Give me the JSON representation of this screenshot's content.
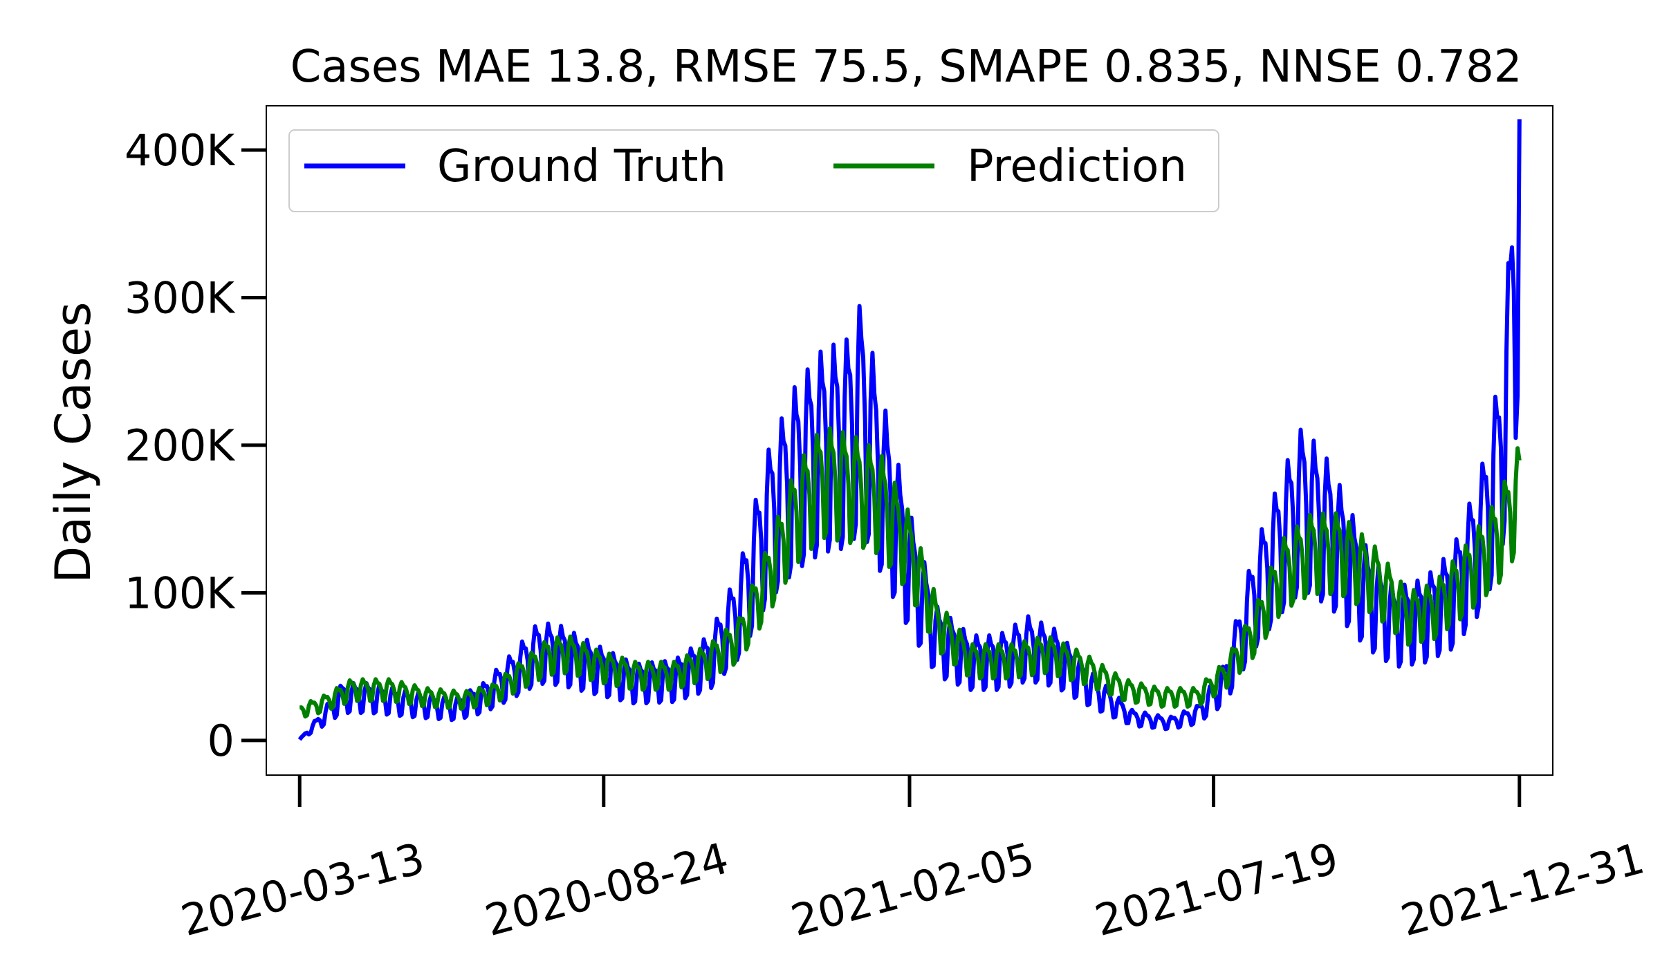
{
  "chart_data": {
    "type": "line",
    "title": "Cases MAE 13.8, RMSE 75.5, SMAPE 0.835, NNSE 0.782",
    "xlabel": "",
    "ylabel": "Daily Cases",
    "xlim": [
      "2020-02-24",
      "2022-01-18"
    ],
    "ylim": [
      0,
      400000
    ],
    "x_ticks": [
      "2020-03-13",
      "2020-08-24",
      "2021-02-05",
      "2021-07-19",
      "2021-12-31"
    ],
    "y_ticks": [
      {
        "value": 0,
        "label": "0"
      },
      {
        "value": 100000,
        "label": "100K"
      },
      {
        "value": 200000,
        "label": "200K"
      },
      {
        "value": 300000,
        "label": "300K"
      },
      {
        "value": 400000,
        "label": "400K"
      }
    ],
    "grid": false,
    "legend_position": "top-left",
    "series": [
      {
        "name": "Ground Truth",
        "color": "#0000ff",
        "trend_points": [
          [
            "2020-03-13",
            500
          ],
          [
            "2020-03-25",
            15000
          ],
          [
            "2020-04-05",
            30000
          ],
          [
            "2020-04-20",
            30000
          ],
          [
            "2020-05-15",
            25000
          ],
          [
            "2020-06-05",
            22000
          ],
          [
            "2020-06-20",
            30000
          ],
          [
            "2020-07-05",
            45000
          ],
          [
            "2020-07-20",
            62000
          ],
          [
            "2020-08-01",
            60000
          ],
          [
            "2020-08-20",
            50000
          ],
          [
            "2020-09-10",
            40000
          ],
          [
            "2020-10-01",
            42000
          ],
          [
            "2020-10-20",
            55000
          ],
          [
            "2020-11-05",
            90000
          ],
          [
            "2020-11-20",
            150000
          ],
          [
            "2020-12-05",
            185000
          ],
          [
            "2020-12-20",
            205000
          ],
          [
            "2021-01-02",
            210000
          ],
          [
            "2021-01-10",
            230000
          ],
          [
            "2021-01-20",
            185000
          ],
          [
            "2021-02-05",
            120000
          ],
          [
            "2021-02-20",
            70000
          ],
          [
            "2021-03-10",
            55000
          ],
          [
            "2021-03-25",
            55000
          ],
          [
            "2021-04-10",
            65000
          ],
          [
            "2021-04-25",
            58000
          ],
          [
            "2021-05-15",
            35000
          ],
          [
            "2021-06-05",
            16000
          ],
          [
            "2021-06-25",
            12000
          ],
          [
            "2021-07-10",
            18000
          ],
          [
            "2021-07-25",
            40000
          ],
          [
            "2021-08-10",
            100000
          ],
          [
            "2021-08-25",
            140000
          ],
          [
            "2021-09-05",
            165000
          ],
          [
            "2021-09-20",
            145000
          ],
          [
            "2021-10-10",
            100000
          ],
          [
            "2021-10-25",
            80000
          ],
          [
            "2021-11-10",
            85000
          ],
          [
            "2021-11-25",
            100000
          ],
          [
            "2021-12-10",
            140000
          ],
          [
            "2021-12-20",
            190000
          ],
          [
            "2021-12-25",
            250000
          ],
          [
            "2021-12-29",
            330000
          ],
          [
            "2021-12-31",
            380000
          ]
        ],
        "weekly_amplitude_fraction": 0.32
      },
      {
        "name": "Prediction",
        "color": "#008000",
        "trend_points": [
          [
            "2020-03-13",
            20000
          ],
          [
            "2020-03-25",
            25000
          ],
          [
            "2020-04-10",
            35000
          ],
          [
            "2020-05-01",
            35000
          ],
          [
            "2020-05-20",
            30000
          ],
          [
            "2020-06-10",
            28000
          ],
          [
            "2020-06-25",
            32000
          ],
          [
            "2020-07-10",
            45000
          ],
          [
            "2020-07-25",
            58000
          ],
          [
            "2020-08-05",
            60000
          ],
          [
            "2020-08-20",
            52000
          ],
          [
            "2020-09-10",
            45000
          ],
          [
            "2020-10-01",
            45000
          ],
          [
            "2020-10-20",
            55000
          ],
          [
            "2020-11-05",
            70000
          ],
          [
            "2020-11-20",
            110000
          ],
          [
            "2020-12-05",
            155000
          ],
          [
            "2020-12-20",
            180000
          ],
          [
            "2021-01-05",
            175000
          ],
          [
            "2021-01-20",
            165000
          ],
          [
            "2021-02-05",
            130000
          ],
          [
            "2021-02-20",
            80000
          ],
          [
            "2021-03-10",
            55000
          ],
          [
            "2021-04-01",
            55000
          ],
          [
            "2021-04-20",
            60000
          ],
          [
            "2021-05-10",
            50000
          ],
          [
            "2021-06-01",
            35000
          ],
          [
            "2021-06-20",
            30000
          ],
          [
            "2021-07-10",
            30000
          ],
          [
            "2021-07-25",
            45000
          ],
          [
            "2021-08-10",
            75000
          ],
          [
            "2021-08-25",
            115000
          ],
          [
            "2021-09-10",
            130000
          ],
          [
            "2021-09-25",
            130000
          ],
          [
            "2021-10-15",
            110000
          ],
          [
            "2021-11-01",
            85000
          ],
          [
            "2021-11-15",
            90000
          ],
          [
            "2021-12-01",
            110000
          ],
          [
            "2021-12-20",
            140000
          ],
          [
            "2021-12-31",
            170000
          ]
        ],
        "weekly_amplitude_fraction": 0.2
      }
    ]
  }
}
